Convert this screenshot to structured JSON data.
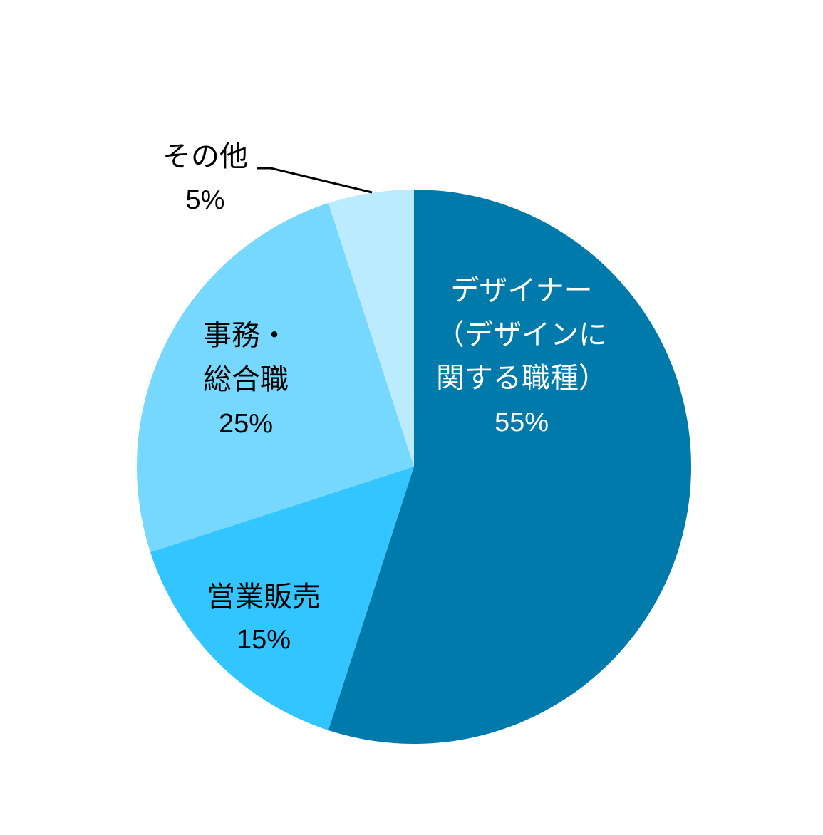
{
  "chart_data": {
    "type": "pie",
    "categories": [
      [
        "デザイナー",
        "（デザインに",
        "関する職種）"
      ],
      [
        "営業販売"
      ],
      [
        "事務・",
        "総合職"
      ],
      [
        "その他"
      ]
    ],
    "values": [
      55,
      15,
      25,
      5
    ],
    "value_labels": [
      "55%",
      "15%",
      "25%",
      "5%"
    ],
    "colors": [
      "#0079ab",
      "#33c5ff",
      "#77d8ff",
      "#bbebff"
    ]
  }
}
